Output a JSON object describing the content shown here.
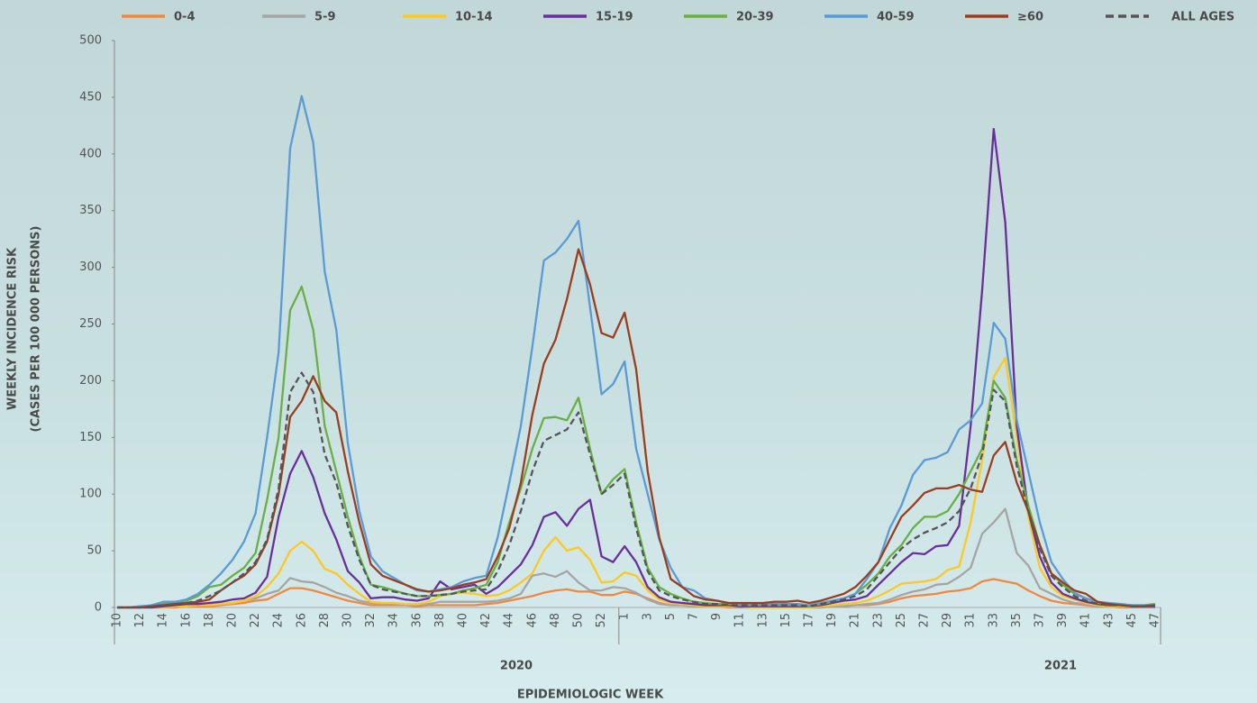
{
  "chart_data": {
    "type": "line",
    "x_label": "EPIDEMIOLOGIC WEEK",
    "y_label": [
      "WEEKLY INCIDENCE RISK",
      "(CASES PER 100 000 PERSONS)"
    ],
    "x_group_labels": [
      "2020",
      "2021"
    ],
    "categories": [
      "10",
      null,
      "12",
      null,
      "14",
      null,
      "16",
      null,
      "18",
      null,
      "20",
      null,
      "22",
      null,
      "24",
      null,
      "26",
      null,
      "28",
      null,
      "30",
      null,
      "32",
      null,
      "34",
      null,
      "36",
      null,
      "38",
      null,
      "40",
      null,
      "42",
      null,
      "44",
      null,
      "46",
      null,
      "48",
      null,
      "50",
      null,
      "52",
      null,
      "1",
      null,
      "3",
      null,
      "5",
      null,
      "7",
      null,
      "9",
      null,
      "11",
      null,
      "13",
      null,
      "15",
      null,
      "17",
      null,
      "19",
      null,
      "21",
      null,
      "23",
      null,
      "25",
      null,
      "27",
      null,
      "29",
      null,
      "31",
      null,
      "33",
      null,
      "35",
      null,
      "37",
      null,
      "39",
      null,
      "41",
      null,
      "43",
      null,
      "45",
      null,
      "47"
    ],
    "ylim": [
      0,
      500
    ],
    "yticks": [
      0,
      50,
      100,
      150,
      200,
      250,
      300,
      350,
      400,
      450,
      500
    ],
    "grid": false,
    "legend": "top",
    "series": [
      {
        "name": "0-4",
        "color": "#f0883e",
        "values": [
          0,
          0,
          0,
          0,
          0,
          0,
          1,
          1,
          1,
          2,
          3,
          4,
          6,
          7,
          12,
          17,
          17,
          15,
          12,
          9,
          6,
          4,
          2,
          2,
          2,
          2,
          1,
          2,
          2,
          2,
          2,
          2,
          3,
          4,
          6,
          8,
          10,
          13,
          15,
          16,
          14,
          14,
          11,
          11,
          14,
          12,
          8,
          4,
          2,
          2,
          1,
          1,
          1,
          0,
          0,
          0,
          0,
          0,
          0,
          0,
          0,
          0,
          1,
          1,
          2,
          2,
          3,
          5,
          8,
          10,
          11,
          12,
          14,
          15,
          17,
          23,
          25,
          23,
          21,
          15,
          10,
          6,
          4,
          3,
          2,
          1,
          1,
          0,
          0,
          0,
          0
        ]
      },
      {
        "name": "5-9",
        "color": "#a5a5a5",
        "values": [
          0,
          0,
          0,
          0,
          0,
          1,
          1,
          2,
          3,
          3,
          4,
          6,
          8,
          12,
          15,
          26,
          23,
          22,
          18,
          13,
          10,
          6,
          4,
          3,
          3,
          2,
          2,
          3,
          5,
          5,
          5,
          5,
          5,
          6,
          8,
          12,
          28,
          30,
          27,
          32,
          22,
          15,
          15,
          18,
          17,
          13,
          7,
          3,
          2,
          2,
          1,
          1,
          1,
          1,
          0,
          0,
          0,
          0,
          0,
          0,
          0,
          0,
          1,
          1,
          2,
          3,
          4,
          7,
          11,
          14,
          16,
          20,
          21,
          27,
          35,
          65,
          75,
          87,
          48,
          37,
          17,
          12,
          7,
          4,
          3,
          1,
          1,
          1,
          0,
          0,
          0
        ]
      },
      {
        "name": "10-14",
        "color": "#fdc820",
        "values": [
          0,
          0,
          0,
          0,
          0,
          1,
          1,
          2,
          2,
          3,
          4,
          6,
          10,
          18,
          30,
          50,
          58,
          50,
          34,
          30,
          20,
          12,
          5,
          4,
          4,
          3,
          3,
          5,
          10,
          12,
          13,
          12,
          10,
          11,
          15,
          22,
          30,
          50,
          62,
          50,
          53,
          42,
          22,
          23,
          31,
          28,
          15,
          7,
          4,
          3,
          2,
          1,
          1,
          1,
          1,
          0,
          0,
          0,
          0,
          0,
          0,
          1,
          2,
          3,
          4,
          6,
          10,
          15,
          21,
          22,
          23,
          25,
          33,
          36,
          75,
          130,
          203,
          220,
          150,
          80,
          35,
          18,
          10,
          7,
          4,
          2,
          1,
          1,
          1,
          1,
          1
        ]
      },
      {
        "name": "15-19",
        "color": "#6a2f9a",
        "values": [
          0,
          0,
          0,
          0,
          1,
          2,
          3,
          3,
          4,
          5,
          7,
          8,
          13,
          27,
          80,
          118,
          138,
          115,
          83,
          60,
          32,
          22,
          8,
          9,
          9,
          7,
          6,
          8,
          23,
          16,
          18,
          20,
          12,
          18,
          28,
          38,
          55,
          80,
          84,
          72,
          87,
          95,
          45,
          40,
          54,
          40,
          18,
          9,
          5,
          4,
          3,
          2,
          2,
          2,
          1,
          1,
          1,
          1,
          1,
          1,
          1,
          2,
          4,
          6,
          7,
          10,
          20,
          30,
          40,
          48,
          47,
          54,
          55,
          72,
          160,
          280,
          422,
          340,
          160,
          85,
          45,
          22,
          12,
          8,
          5,
          3,
          2,
          2,
          1,
          1,
          1
        ]
      },
      {
        "name": "20-39",
        "color": "#6aaf45",
        "values": [
          0,
          0,
          1,
          1,
          3,
          4,
          6,
          10,
          18,
          20,
          28,
          35,
          48,
          95,
          150,
          262,
          283,
          245,
          160,
          120,
          80,
          45,
          20,
          18,
          15,
          12,
          10,
          10,
          11,
          12,
          15,
          17,
          20,
          40,
          75,
          105,
          140,
          167,
          168,
          165,
          185,
          140,
          100,
          113,
          122,
          75,
          35,
          18,
          12,
          8,
          5,
          4,
          3,
          3,
          2,
          2,
          2,
          2,
          2,
          2,
          1,
          3,
          5,
          8,
          12,
          20,
          30,
          45,
          55,
          70,
          80,
          80,
          85,
          100,
          120,
          140,
          200,
          185,
          130,
          90,
          55,
          30,
          20,
          12,
          8,
          4,
          3,
          2,
          2,
          2,
          3
        ]
      },
      {
        "name": "40-59",
        "color": "#5b9bd5",
        "values": [
          0,
          0,
          1,
          2,
          5,
          5,
          7,
          12,
          20,
          30,
          42,
          58,
          83,
          150,
          225,
          405,
          451,
          410,
          296,
          245,
          145,
          85,
          45,
          32,
          26,
          20,
          15,
          14,
          16,
          18,
          23,
          26,
          28,
          62,
          110,
          160,
          230,
          306,
          313,
          325,
          341,
          265,
          188,
          197,
          217,
          140,
          100,
          60,
          35,
          18,
          15,
          8,
          6,
          4,
          3,
          3,
          3,
          3,
          3,
          3,
          2,
          4,
          6,
          8,
          12,
          25,
          40,
          70,
          90,
          117,
          130,
          132,
          137,
          157,
          165,
          180,
          251,
          237,
          165,
          120,
          75,
          40,
          25,
          13,
          8,
          5,
          4,
          3,
          2,
          2,
          2
        ]
      },
      {
        "name": "≥60",
        "color": "#9c3d1f",
        "values": [
          0,
          0,
          0,
          1,
          2,
          3,
          4,
          5,
          7,
          15,
          22,
          28,
          38,
          58,
          100,
          168,
          182,
          204,
          182,
          172,
          120,
          75,
          38,
          28,
          24,
          20,
          16,
          14,
          15,
          17,
          20,
          22,
          25,
          45,
          70,
          110,
          170,
          215,
          236,
          272,
          316,
          285,
          242,
          238,
          260,
          210,
          120,
          62,
          25,
          18,
          10,
          7,
          6,
          4,
          4,
          4,
          4,
          5,
          5,
          6,
          4,
          6,
          9,
          12,
          18,
          28,
          40,
          60,
          80,
          90,
          101,
          105,
          105,
          108,
          104,
          102,
          134,
          146,
          110,
          85,
          55,
          30,
          22,
          15,
          12,
          5,
          3,
          2,
          1,
          1,
          2
        ]
      },
      {
        "name": "ALL AGES",
        "color": "#555555",
        "dash": true,
        "values": [
          0,
          0,
          0,
          1,
          2,
          3,
          4,
          6,
          10,
          15,
          22,
          30,
          40,
          60,
          105,
          190,
          207,
          190,
          135,
          110,
          72,
          42,
          20,
          16,
          14,
          12,
          10,
          10,
          11,
          12,
          14,
          15,
          16,
          32,
          55,
          85,
          120,
          147,
          152,
          157,
          172,
          135,
          100,
          108,
          118,
          70,
          32,
          15,
          10,
          7,
          5,
          3,
          3,
          2,
          2,
          2,
          2,
          2,
          2,
          2,
          1,
          3,
          5,
          7,
          10,
          16,
          28,
          40,
          52,
          60,
          66,
          70,
          75,
          85,
          105,
          135,
          192,
          182,
          125,
          85,
          52,
          28,
          18,
          10,
          6,
          3,
          2,
          2,
          1,
          1,
          2
        ]
      }
    ]
  }
}
